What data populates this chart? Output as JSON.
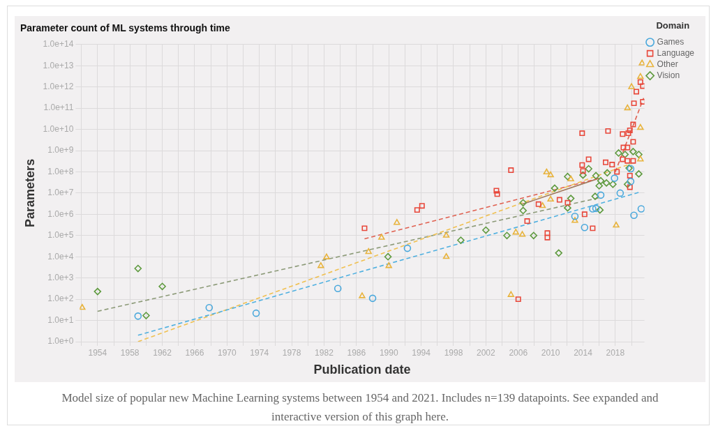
{
  "chart_data": {
    "type": "scatter",
    "title": "Parameter count of ML systems through time",
    "xlabel": "Publication date",
    "ylabel": "Parameters",
    "legend_title": "Domain",
    "legend": "right",
    "grid": true,
    "log": "y",
    "xlim": [
      1951.8,
      2021.6
    ],
    "xticks": [
      {
        "value": 1952,
        "label": null
      },
      1954,
      {
        "value": 1956,
        "label": null
      },
      1958,
      {
        "value": 1960,
        "label": null
      },
      1962,
      {
        "value": 1964,
        "label": null
      },
      1966,
      {
        "value": 1968,
        "label": null
      },
      1970,
      {
        "value": 1972,
        "label": null
      },
      1974,
      {
        "value": 1976,
        "label": null
      },
      1978,
      {
        "value": 1980,
        "label": null
      },
      1982,
      {
        "value": 1984,
        "label": null
      },
      1986,
      {
        "value": 1988,
        "label": null
      },
      1990,
      {
        "value": 1992,
        "label": null
      },
      1994,
      {
        "value": 1996,
        "label": null
      },
      1998,
      {
        "value": 2000,
        "label": null
      },
      2002,
      {
        "value": 2004,
        "label": null
      },
      2006,
      {
        "value": 2008,
        "label": null
      },
      2010,
      {
        "value": 2012,
        "label": null
      },
      2014,
      {
        "value": 2016,
        "label": null
      },
      2018,
      {
        "value": 2020,
        "label": null
      }
    ],
    "ylim": [
      1,
      100000000000000.0
    ],
    "yticks": [
      {
        "value": 1,
        "label": "1.0e+0"
      },
      {
        "value": 10,
        "label": "1.0e+1"
      },
      {
        "value": 100,
        "label": "1.0e+2"
      },
      {
        "value": 1000,
        "label": "1.0e+3"
      },
      {
        "value": 10000.0,
        "label": "1.0e+4"
      },
      {
        "value": 100000.0,
        "label": "1.0e+5"
      },
      {
        "value": 1000000.0,
        "label": "1.0e+6"
      },
      {
        "value": 10000000.0,
        "label": "1.0e+7"
      },
      {
        "value": 100000000.0,
        "label": "1.0e+8"
      },
      {
        "value": 1000000000.0,
        "label": "1.0e+9"
      },
      {
        "value": 10000000000.0,
        "label": "1.0e+10"
      },
      {
        "value": 100000000000.0,
        "label": "1.0e+11"
      },
      {
        "value": 1000000000000.0,
        "label": "1.0e+12"
      },
      {
        "value": 10000000000000.0,
        "label": "1.0e+13"
      },
      {
        "value": 100000000000000.0,
        "label": "1.0e+14"
      }
    ],
    "annotations": [
      "Model size of popular new Machine Learning systems between 1954 and 2021. Includes n=139 datapoints. See expanded and interactive version of this graph here."
    ],
    "series": [
      {
        "name": "Games",
        "color": "#4aa8dc",
        "marker": "circle",
        "x": [
          1959.0,
          1967.8,
          1973.6,
          1983.7,
          1988.0,
          1992.3,
          2013.0,
          2014.2,
          2015.2,
          2015.6,
          2016.2,
          2018.6,
          2017.9,
          2019.9,
          2019.9,
          2020.3,
          2021.2
        ],
        "values": [
          16,
          40,
          22,
          320,
          110,
          25000,
          800000,
          240000,
          1800000,
          1900000,
          8000000,
          10000000,
          50000000,
          35000000,
          140000000,
          900000,
          1800000
        ]
      },
      {
        "name": "Language",
        "color": "#e8473a",
        "marker": "square",
        "x": [
          1987.0,
          1993.5,
          1994.1,
          2003.3,
          2003.4,
          2005.1,
          2006.0,
          2007.1,
          2008.5,
          2009.6,
          2009.6,
          2011.1,
          2012.1,
          2013.9,
          2013.9,
          2014.0,
          2014.2,
          2014.7,
          2015.2,
          2016.8,
          2017.1,
          2017.6,
          2018.2,
          2018.9,
          2018.9,
          2019.0,
          2019.5,
          2019.5,
          2019.6,
          2019.8,
          2019.8,
          2019.8,
          2020.2,
          2020.2,
          2020.2,
          2020.3,
          2020.6,
          2021.1,
          2021.4,
          2021.4
        ],
        "values": [
          220000,
          1600000,
          2500000,
          13000000,
          9000000,
          120000000,
          100,
          480000,
          3000000,
          130000,
          80000,
          4800000,
          3500000,
          6600000000,
          210000000,
          110000000,
          1000000,
          390000000,
          220000,
          280000000,
          8400000000,
          220000000,
          100000000,
          6000000000,
          390000000,
          1400000000,
          1400000000,
          330000000,
          6600000000,
          9000000000,
          66000000,
          19000000,
          17000000000,
          2600000000,
          330000000,
          170000000000,
          600000000000,
          1700000000000,
          1100000000000,
          200000000000
        ]
      },
      {
        "name": "Other",
        "color": "#e8b33c",
        "marker": "triangle",
        "x": [
          1952.1,
          1981.6,
          1982.3,
          1986.7,
          1987.5,
          1989.1,
          1990.0,
          1991.0,
          1997.1,
          1997.1,
          2005.1,
          2005.7,
          2006.5,
          2009.0,
          2010.0,
          2009.5,
          2010.0,
          2012.5,
          2013.0,
          2018.1,
          2019.5,
          2020.0,
          2021.1,
          2021.3,
          2021.1,
          2021.1
        ],
        "values": [
          40,
          3700,
          9500,
          140,
          17000,
          80000,
          3700,
          400000,
          100000,
          10000,
          160,
          140000,
          110000,
          2500000,
          5000000,
          96000000,
          70000000,
          45000000,
          500000,
          300000,
          100000000000,
          1000000000000,
          3000000000000,
          13000000000000,
          12000000000,
          390000000
        ]
      },
      {
        "name": "Vision",
        "color": "#5e9a3e",
        "marker": "diamond",
        "x": [
          1954.0,
          1959.0,
          1960.0,
          1962.0,
          1989.9,
          1998.9,
          2002.0,
          2004.6,
          2006.6,
          2006.6,
          2007.9,
          2010.5,
          2011.0,
          2012.1,
          2012.1,
          2012.5,
          2014.0,
          2014.7,
          2015.5,
          2015.6,
          2016.0,
          2016.1,
          2016.2,
          2016.9,
          2017.0,
          2017.7,
          2018.4,
          2019.2,
          2019.5,
          2019.7,
          2020.2,
          2020.9,
          2020.9
        ],
        "values": [
          230,
          2800,
          17,
          400,
          10000,
          60000,
          180000,
          100000,
          3500000,
          1500000,
          100000,
          17000000,
          15000,
          2000000,
          60000000,
          5600000,
          70000000,
          140000000,
          7000000,
          66000000,
          22000000,
          1600000,
          38000000,
          30000000,
          90000000,
          26000000,
          770000000,
          660000000,
          26000000,
          150000000,
          900000000,
          660000000,
          80000000
        ]
      },
      {
        "type": "line",
        "color": "#4fb0e0",
        "line_style": "dashed",
        "x": [
          1959.0,
          2021.0
        ],
        "values": [
          2,
          11000000
        ]
      },
      {
        "type": "line",
        "color": "#f0c050",
        "line_style": "dashed",
        "x": [
          1959.0,
          2020.0
        ],
        "values": [
          1,
          250000000
        ]
      },
      {
        "type": "line",
        "color": "#8c9a78",
        "line_style": "dashed",
        "x": [
          1954.0,
          2016.0
        ],
        "values": [
          27,
          6000000
        ]
      },
      {
        "type": "line",
        "color": "#e06050",
        "line_style": "dashed",
        "x": [
          1987.0,
          2016.0
        ],
        "values": [
          70000,
          50000000
        ]
      },
      {
        "type": "line",
        "color": "#e06050",
        "line_style": "dashed",
        "x": [
          2018.0,
          2021.5
        ],
        "values": [
          100000000,
          300000000000
        ]
      },
      {
        "type": "line",
        "color": "#a0785a",
        "line_style": "solid",
        "x": [
          2006.5,
          2016.0
        ],
        "values": [
          3000000,
          50000000
        ]
      }
    ]
  }
}
